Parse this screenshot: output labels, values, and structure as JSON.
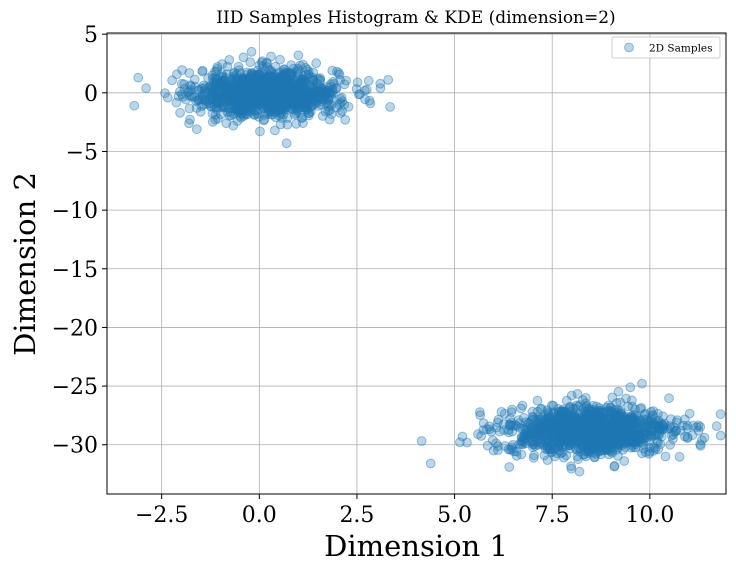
{
  "chart_data": {
    "type": "scatter",
    "title": "IID Samples Histogram & KDE (dimension=2)",
    "xlabel": "Dimension 1",
    "ylabel": "Dimension 2",
    "xlim": [
      -3.9,
      11.95
    ],
    "ylim": [
      -34.2,
      5.1
    ],
    "xticks": [
      -2.5,
      0.0,
      2.5,
      5.0,
      7.5,
      10.0
    ],
    "xtick_labels": [
      "−2.5",
      "0.0",
      "2.5",
      "5.0",
      "7.5",
      "10.0"
    ],
    "yticks": [
      5,
      0,
      -5,
      -10,
      -15,
      -20,
      -25,
      -30
    ],
    "ytick_labels": [
      "5",
      "0",
      "−5",
      "−10",
      "−15",
      "−20",
      "−25",
      "−30"
    ],
    "grid": true,
    "legend": {
      "placement": "top-right",
      "entries": [
        "2D Samples"
      ]
    },
    "series": [
      {
        "name": "2D Samples",
        "color": "#1f77b4",
        "alpha": 0.3,
        "clusters": [
          {
            "center": [
              0.2,
              0.0
            ],
            "std": [
              0.9,
              1.0
            ],
            "count": 1200
          },
          {
            "center": [
              8.5,
              -28.8
            ],
            "std": [
              1.05,
              1.0
            ],
            "count": 1200
          }
        ],
        "points": [
          [
            -3.1,
            1.3
          ],
          [
            -3.2,
            -1.1
          ],
          [
            -2.9,
            0.4
          ],
          [
            3.3,
            1.1
          ],
          [
            3.35,
            -1.2
          ],
          [
            3.1,
            0.4
          ],
          [
            2.2,
            -2.3
          ],
          [
            -1.8,
            -2.6
          ],
          [
            -1.6,
            -3.1
          ],
          [
            0.7,
            -4.3
          ],
          [
            0.4,
            -3.2
          ],
          [
            -0.2,
            3.5
          ],
          [
            0.3,
            3.1
          ],
          [
            1.0,
            3.2
          ],
          [
            2.7,
            0.2
          ],
          [
            5.2,
            -29.3
          ],
          [
            5.6,
            -29.1
          ],
          [
            6.0,
            -30.5
          ],
          [
            6.4,
            -31.9
          ],
          [
            6.2,
            -27.2
          ],
          [
            6.7,
            -26.9
          ],
          [
            7.3,
            -30.9
          ],
          [
            7.8,
            -31.1
          ],
          [
            8.2,
            -32.3
          ],
          [
            9.1,
            -31.8
          ],
          [
            9.8,
            -24.8
          ],
          [
            9.5,
            -25.1
          ],
          [
            10.7,
            -27.9
          ],
          [
            11.4,
            -29.4
          ],
          [
            11.2,
            -28.5
          ],
          [
            11.3,
            -30.1
          ],
          [
            8.0,
            -25.8
          ],
          [
            10.4,
            -31.0
          ],
          [
            7.0,
            -27.6
          ]
        ]
      }
    ]
  }
}
